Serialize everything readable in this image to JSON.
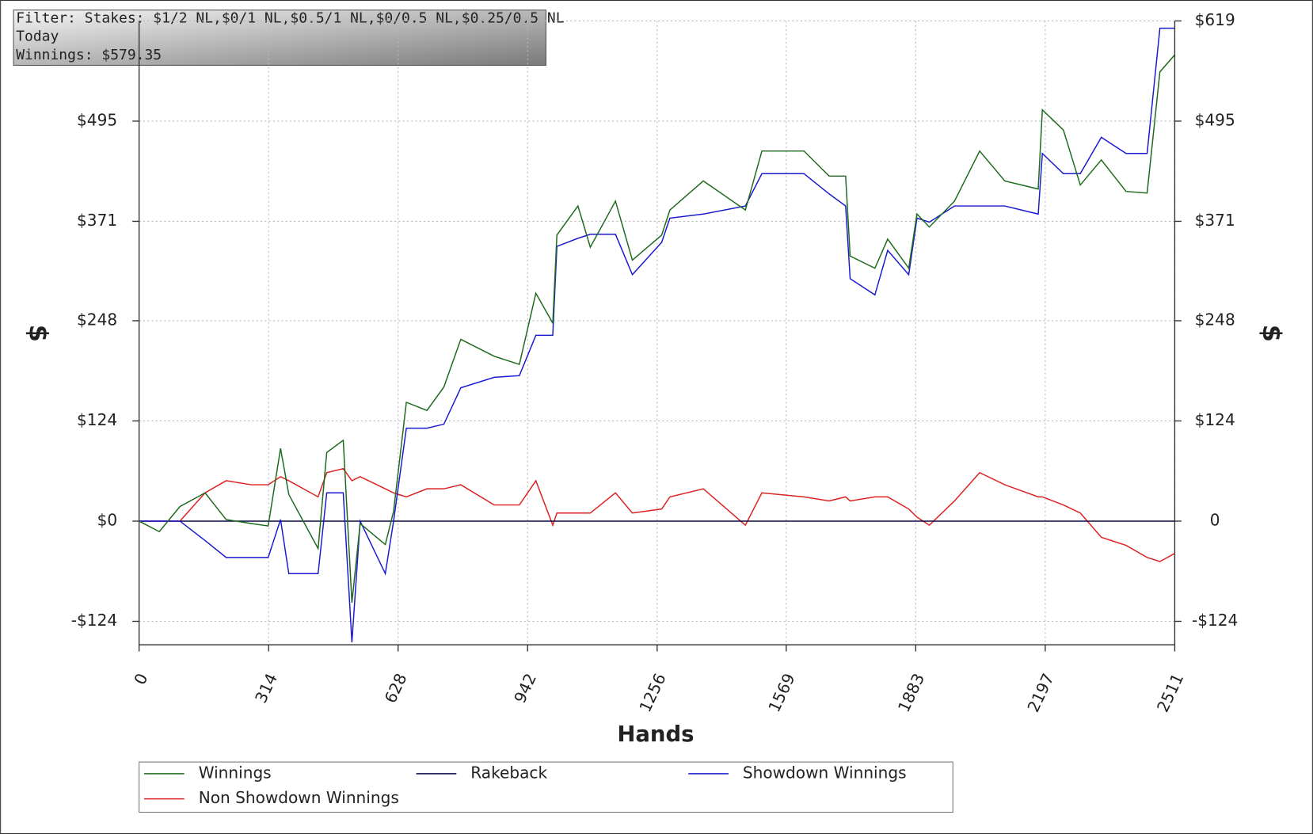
{
  "chart_data": {
    "type": "line",
    "info": [
      "Filter: Stakes: $1/2 NL,$0/1 NL,$0.5/1 NL,$0/0.5 NL,$0.25/0.5 NL",
      "Today",
      "Winnings: $579.35"
    ],
    "xlabel": "Hands",
    "ylabel": "$",
    "y2label": "$",
    "x": [
      0,
      49,
      99,
      160,
      211,
      272,
      313,
      343,
      363,
      434,
      455,
      495,
      516,
      536,
      597,
      617,
      648,
      698,
      739,
      780,
      861,
      922,
      962,
      1003,
      1013,
      1064,
      1094,
      1155,
      1196,
      1267,
      1287,
      1368,
      1470,
      1510,
      1612,
      1673,
      1713,
      1724,
      1784,
      1815,
      1866,
      1886,
      1916,
      1977,
      2038,
      2099,
      2180,
      2190,
      2241,
      2282,
      2333,
      2393,
      2444,
      2475,
      2511
    ],
    "series": [
      {
        "name": "Winnings",
        "color": "#1d6a1d",
        "values": [
          0,
          -13,
          18,
          35,
          2,
          -3,
          -6,
          90,
          33,
          -34,
          85,
          100,
          -101,
          -3,
          -29,
          12,
          147,
          137,
          166,
          225,
          204,
          194,
          282,
          245,
          354,
          390,
          339,
          396,
          323,
          354,
          385,
          421,
          385,
          458,
          458,
          427,
          427,
          328,
          313,
          349,
          313,
          380,
          364,
          396,
          458,
          421,
          411,
          509,
          484,
          416,
          447,
          408,
          406,
          556,
          577
        ]
      },
      {
        "name": "Rakeback",
        "color": "#0a0a40",
        "values": [
          0,
          0,
          0,
          0,
          0,
          0,
          0,
          0,
          0,
          0,
          0,
          0,
          0,
          0,
          0,
          0,
          0,
          0,
          0,
          0,
          0,
          0,
          0,
          0,
          0,
          0,
          0,
          0,
          0,
          0,
          0,
          0,
          0,
          0,
          0,
          0,
          0,
          0,
          0,
          0,
          0,
          0,
          0,
          0,
          0,
          0,
          0,
          0,
          0,
          0,
          0,
          0,
          0,
          0,
          0
        ]
      },
      {
        "name": "Showdown Winnings",
        "color": "#1a1ad0",
        "values": [
          0,
          0,
          0,
          -24,
          -45,
          -45,
          -45,
          2,
          -65,
          -65,
          35,
          35,
          -150,
          0,
          -65,
          0,
          115,
          115,
          120,
          165,
          178,
          180,
          230,
          230,
          340,
          350,
          355,
          355,
          305,
          345,
          375,
          380,
          390,
          430,
          430,
          405,
          390,
          300,
          280,
          335,
          305,
          375,
          370,
          390,
          390,
          390,
          380,
          455,
          430,
          430,
          475,
          455,
          455,
          610,
          610
        ]
      },
      {
        "name": "Non Showdown Winnings",
        "color": "#dd2020",
        "values": [
          0,
          0,
          0,
          35,
          50,
          45,
          45,
          55,
          50,
          30,
          60,
          65,
          50,
          55,
          40,
          35,
          30,
          40,
          40,
          45,
          20,
          20,
          50,
          -5,
          10,
          10,
          10,
          35,
          10,
          15,
          30,
          40,
          -5,
          35,
          30,
          25,
          30,
          25,
          30,
          30,
          15,
          5,
          -5,
          25,
          60,
          45,
          30,
          30,
          20,
          10,
          -20,
          -30,
          -45,
          -50,
          -40
        ]
      }
    ],
    "xlim": [
      0,
      2511
    ],
    "xticks": [
      0,
      314,
      628,
      942,
      1256,
      1569,
      1883,
      2197,
      2511
    ],
    "ylim": [
      -153,
      619
    ],
    "yticks": [
      {
        "value": -124,
        "label": "-$124"
      },
      {
        "value": 0,
        "label": "$0"
      },
      {
        "value": 124,
        "label": "$124"
      },
      {
        "value": 248,
        "label": "$248"
      },
      {
        "value": 371,
        "label": "$371"
      },
      {
        "value": 495,
        "label": "$495"
      }
    ],
    "y2lim": [
      -153,
      619
    ],
    "y2ticks": [
      {
        "value": -124,
        "label": "-$124"
      },
      0,
      {
        "value": 124,
        "label": "$124"
      },
      {
        "value": 248,
        "label": "$248"
      },
      {
        "value": 371,
        "label": "$371"
      },
      {
        "value": 495,
        "label": "$495"
      },
      {
        "value": 619,
        "label": "$619"
      }
    ],
    "grid": true,
    "legend": "bottom"
  }
}
